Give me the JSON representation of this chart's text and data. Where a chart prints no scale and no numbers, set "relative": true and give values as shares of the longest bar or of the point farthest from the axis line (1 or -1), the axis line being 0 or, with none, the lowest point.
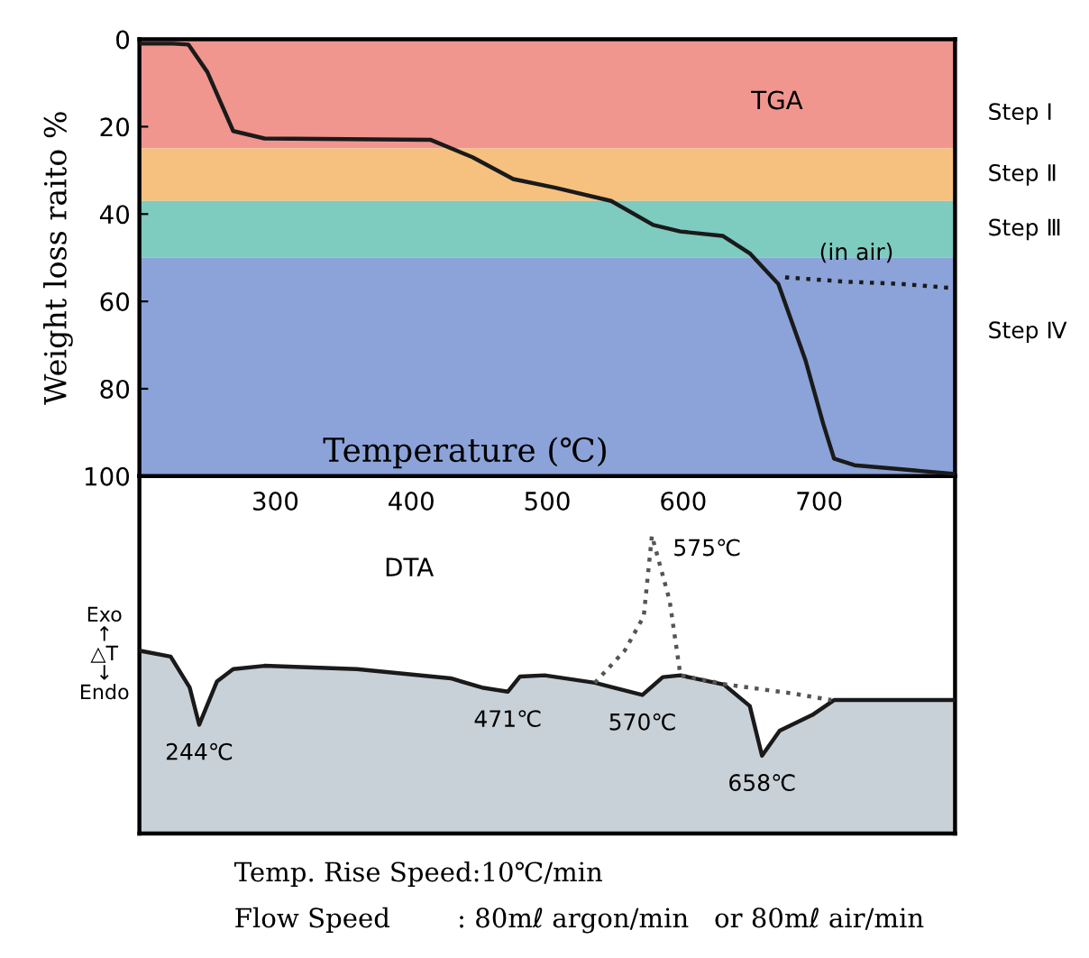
{
  "chart_data": [
    {
      "type": "line",
      "ylabel": "Weight loss raito %",
      "xlabel": "Temperature (℃)",
      "xlim": [
        200,
        800
      ],
      "xticks": [
        300,
        400,
        500,
        600,
        700
      ],
      "ylim": [
        100,
        0
      ],
      "yticks": [
        0,
        20,
        40,
        60,
        80,
        100
      ],
      "grid": false,
      "legend": false,
      "series": [
        {
          "color": "#1a1a1a",
          "line_style": "solid",
          "x": [
            200,
            225,
            236,
            250,
            269,
            292,
            414,
            445,
            475,
            506,
            547,
            578,
            598,
            629,
            649,
            670,
            690,
            703,
            711,
            726,
            800
          ],
          "values": [
            1,
            1,
            1.2,
            7.5,
            21,
            22.7,
            23,
            27,
            32,
            34,
            37,
            42.5,
            44,
            45,
            49,
            56,
            73.5,
            88,
            96,
            97.5,
            99.5
          ]
        },
        {
          "color": "#1a1a1a",
          "line_style": "dotted",
          "x": [
            675,
            720,
            760,
            800
          ],
          "values": [
            54.5,
            55.5,
            56,
            57
          ]
        }
      ],
      "bands": [
        {
          "axis": "y",
          "from": 0,
          "to": 25,
          "label": "Step Ⅰ",
          "color": "#f0968f"
        },
        {
          "axis": "y",
          "from": 25,
          "to": 37,
          "label": "Step Ⅱ",
          "color": "#f6c07f"
        },
        {
          "axis": "y",
          "from": 37,
          "to": 50,
          "label": "Step Ⅲ",
          "color": "#7ecbbf"
        },
        {
          "axis": "y",
          "from": 50,
          "to": 100,
          "label": "Step Ⅳ",
          "color": "#8ba3d8"
        }
      ],
      "annotations": [
        "TGA",
        {
          "text": "(in air)",
          "x": 700,
          "y": 54.5
        }
      ]
    },
    {
      "type": "area",
      "relative": true,
      "ylabel": "Exo\n↑\n△T\n↓\nEndo",
      "xlim": [
        200,
        800
      ],
      "xticks": [
        300,
        400,
        500,
        600,
        700
      ],
      "tick_labels": false,
      "legend": false,
      "series": [
        {
          "color": "#c9d1d8",
          "x": [
            200,
            223,
            237,
            244,
            257,
            269,
            292,
            360,
            429,
            452,
            471,
            480,
            498,
            535,
            570,
            585,
            598,
            630,
            649,
            658,
            671,
            695,
            711,
            800
          ],
          "values": [
            0.614,
            0.594,
            0.49,
            0.365,
            0.51,
            0.552,
            0.563,
            0.552,
            0.521,
            0.49,
            0.476,
            0.527,
            0.531,
            0.506,
            0.465,
            0.525,
            0.531,
            0.5,
            0.428,
            0.261,
            0.345,
            0.398,
            0.448,
            0.448
          ]
        },
        {
          "type": "line",
          "color": "#555555",
          "line_style": "dotted",
          "x": [
            535,
            557,
            571,
            577,
            583,
            590,
            598,
            632,
            681,
            709
          ],
          "values": [
            0.506,
            0.614,
            0.729,
            1.0,
            0.9,
            0.783,
            0.531,
            0.5,
            0.47,
            0.448
          ]
        }
      ],
      "annotations": [
        "DTA",
        {
          "text": "575℃",
          "x": 577,
          "y": 1.0
        },
        {
          "text": "244℃",
          "x": 244,
          "y": 0.365
        },
        {
          "text": "471℃",
          "x": 471,
          "y": 0.476
        },
        {
          "text": "570℃",
          "x": 570,
          "y": 0.465
        },
        {
          "text": "658℃",
          "x": 658,
          "y": 0.261
        },
        "Temp. Rise Speed:10℃/min",
        "Flow Speed        : 80mℓ argon/min   or 80mℓ air/min"
      ]
    }
  ]
}
